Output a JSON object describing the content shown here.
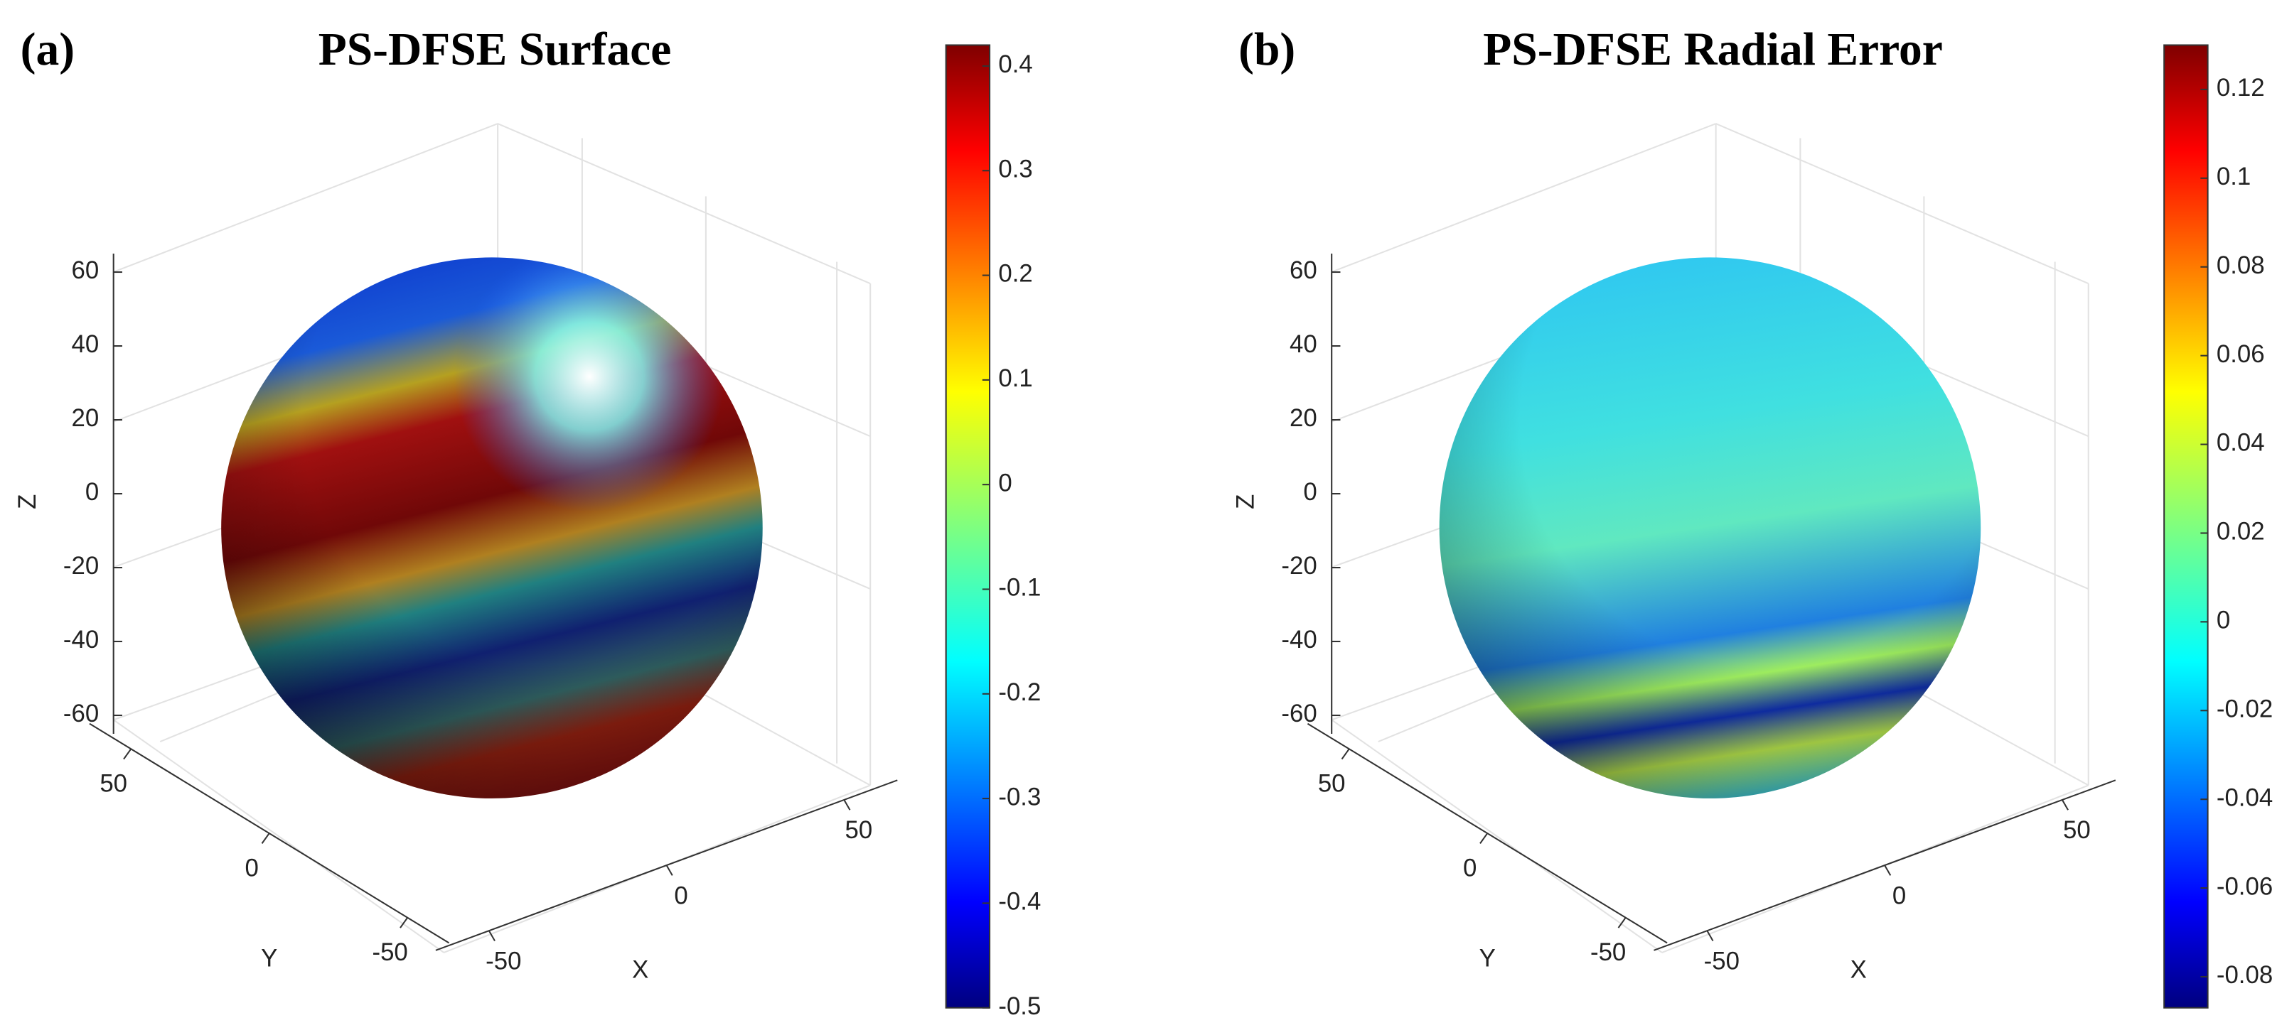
{
  "chart_data": [
    {
      "type": "surface",
      "panel_label": "(a)",
      "title": "PS-DFSE Surface",
      "xlabel": "X",
      "ylabel": "Y",
      "zlabel": "Z",
      "xlim": [
        -65,
        65
      ],
      "ylim": [
        -65,
        65
      ],
      "zlim": [
        -65,
        65
      ],
      "xticks": [
        -50,
        0,
        50
      ],
      "yticks": [
        -50,
        0,
        50
      ],
      "zticks": [
        -60,
        -40,
        -20,
        0,
        20,
        40,
        60
      ],
      "colormap": "jet",
      "colorbar": {
        "clim": [
          -0.5,
          0.42
        ],
        "ticks": [
          -0.5,
          -0.4,
          -0.3,
          -0.2,
          -0.1,
          0,
          0.1,
          0.2,
          0.3,
          0.4
        ]
      }
    },
    {
      "type": "surface",
      "panel_label": "(b)",
      "title": "PS-DFSE Radial Error",
      "xlabel": "X",
      "ylabel": "Y",
      "zlabel": "Z",
      "xlim": [
        -65,
        65
      ],
      "ylim": [
        -65,
        65
      ],
      "zlim": [
        -65,
        65
      ],
      "xticks": [
        -50,
        0,
        50
      ],
      "yticks": [
        -50,
        0,
        50
      ],
      "zticks": [
        -60,
        -40,
        -20,
        0,
        20,
        40,
        60
      ],
      "colormap": "jet",
      "colorbar": {
        "clim": [
          -0.087,
          0.13
        ],
        "ticks": [
          -0.08,
          -0.06,
          -0.04,
          -0.02,
          0,
          0.02,
          0.04,
          0.06,
          0.08,
          0.1,
          0.12
        ]
      }
    }
  ]
}
